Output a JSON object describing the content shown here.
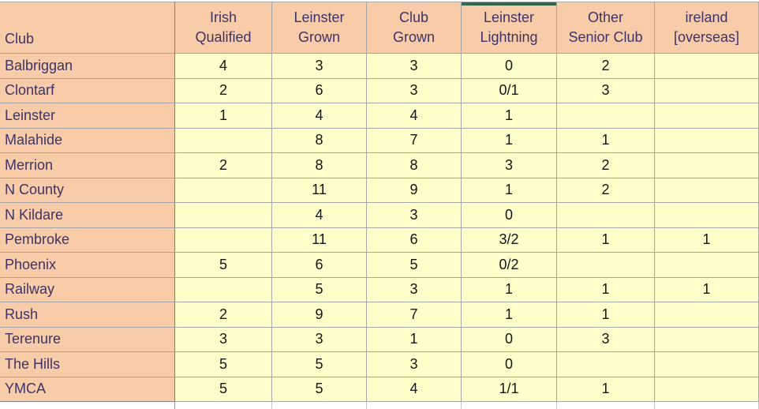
{
  "colors": {
    "header_bg": "#F8CBA9",
    "cell_bg": "#FFFFCC",
    "grid_border": "#A6A6A6",
    "dark_border": "#7F7F7F",
    "heading_text": "#3D3465",
    "value_text": "#141414",
    "highlight_stripe": "#2F6B4A"
  },
  "table": {
    "club_column_header": "Club",
    "headers": [
      {
        "line1": "Irish",
        "line2": "Qualified"
      },
      {
        "line1": "Leinster",
        "line2": "Grown"
      },
      {
        "line1": "Club",
        "line2": "Grown"
      },
      {
        "line1": "Leinster",
        "line2": "Lightning",
        "highlighted": true
      },
      {
        "line1": "Other",
        "line2": "Senior Club"
      },
      {
        "line1": "ireland",
        "line2": "[overseas]"
      }
    ],
    "rows": [
      {
        "club": "Balbriggan",
        "values": [
          "4",
          "3",
          "3",
          "0",
          "2",
          ""
        ]
      },
      {
        "club": "Clontarf",
        "values": [
          "2",
          "6",
          "3",
          "0/1",
          "3",
          ""
        ]
      },
      {
        "club": "Leinster",
        "values": [
          "1",
          "4",
          "4",
          "1",
          "",
          ""
        ]
      },
      {
        "club": "Malahide",
        "values": [
          "",
          "8",
          "7",
          "1",
          "1",
          ""
        ]
      },
      {
        "club": "Merrion",
        "values": [
          "2",
          "8",
          "8",
          "3",
          "2",
          ""
        ]
      },
      {
        "club": "N County",
        "values": [
          "",
          "11",
          "9",
          "1",
          "2",
          ""
        ]
      },
      {
        "club": "N Kildare",
        "values": [
          "",
          "4",
          "3",
          "0",
          "",
          ""
        ]
      },
      {
        "club": "Pembroke",
        "values": [
          "",
          "11",
          "6",
          "3/2",
          "1",
          "1"
        ]
      },
      {
        "club": "Phoenix",
        "values": [
          "5",
          "6",
          "5",
          "0/2",
          "",
          ""
        ]
      },
      {
        "club": "Railway",
        "values": [
          "",
          "5",
          "3",
          "1",
          "1",
          "1"
        ]
      },
      {
        "club": "Rush",
        "values": [
          "2",
          "9",
          "7",
          "1",
          "1",
          ""
        ]
      },
      {
        "club": "Terenure",
        "values": [
          "3",
          "3",
          "1",
          "0",
          "3",
          ""
        ]
      },
      {
        "club": "The Hills",
        "values": [
          "5",
          "5",
          "3",
          "0",
          "",
          ""
        ]
      },
      {
        "club": "YMCA",
        "values": [
          "5",
          "5",
          "4",
          "1/1",
          "1",
          ""
        ]
      }
    ]
  }
}
